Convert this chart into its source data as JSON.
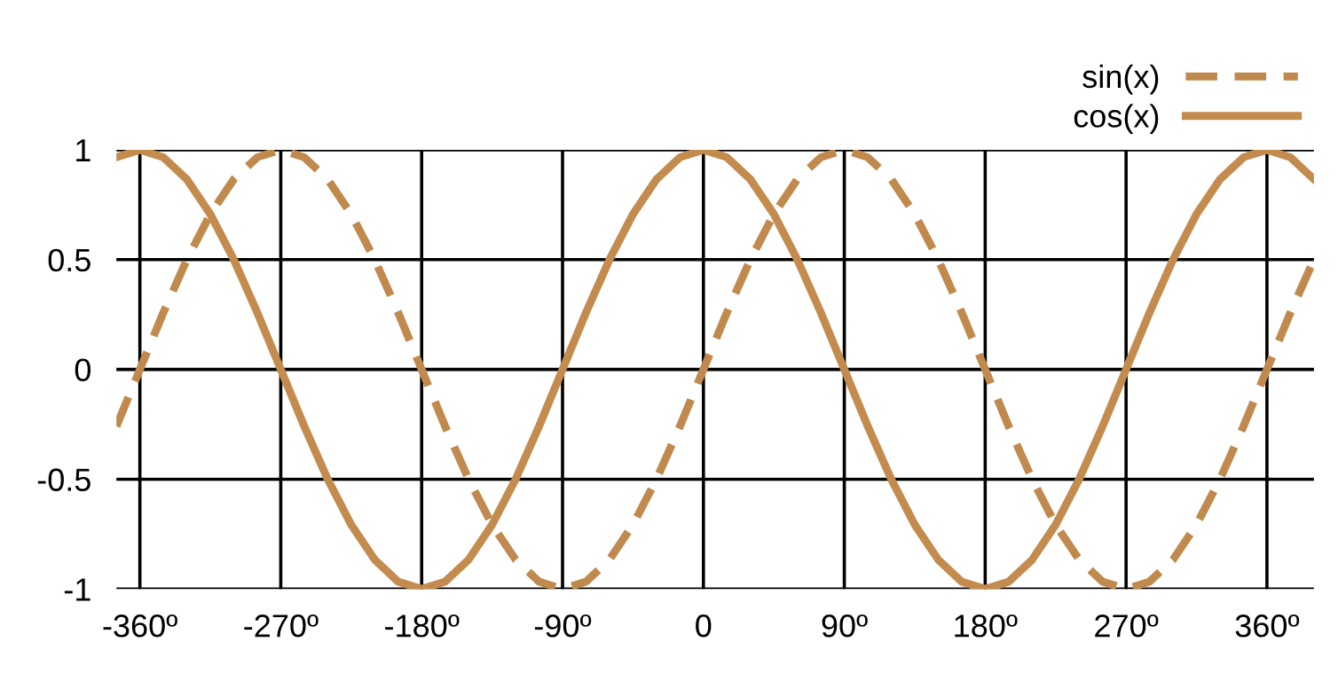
{
  "chart_data": {
    "type": "line",
    "x": [
      -375,
      -360,
      -345,
      -330,
      -315,
      -300,
      -285,
      -270,
      -255,
      -240,
      -225,
      -210,
      -195,
      -180,
      -165,
      -150,
      -135,
      -120,
      -105,
      -90,
      -75,
      -60,
      -45,
      -30,
      -15,
      0,
      15,
      30,
      45,
      60,
      75,
      90,
      105,
      120,
      135,
      150,
      165,
      180,
      195,
      210,
      225,
      240,
      255,
      270,
      285,
      300,
      315,
      330,
      345,
      360,
      375,
      390
    ],
    "series": [
      {
        "name": "sin(x)",
        "color": "#c08a4e",
        "line_style": "dashed",
        "values": [
          -0.259,
          0,
          0.259,
          0.5,
          0.707,
          0.866,
          0.966,
          1,
          0.966,
          0.866,
          0.707,
          0.5,
          0.259,
          0,
          -0.259,
          -0.5,
          -0.707,
          -0.866,
          -0.966,
          -1,
          -0.966,
          -0.866,
          -0.707,
          -0.5,
          -0.259,
          0,
          0.259,
          0.5,
          0.707,
          0.866,
          0.966,
          1,
          0.966,
          0.866,
          0.707,
          0.5,
          0.259,
          0,
          -0.259,
          -0.5,
          -0.707,
          -0.866,
          -0.966,
          -1,
          -0.966,
          -0.866,
          -0.707,
          -0.5,
          -0.259,
          0,
          0.259,
          0.5
        ]
      },
      {
        "name": "cos(x)",
        "color": "#c48b4f",
        "line_style": "solid",
        "values": [
          0.966,
          1,
          0.966,
          0.866,
          0.707,
          0.5,
          0.259,
          0,
          -0.259,
          -0.5,
          -0.707,
          -0.866,
          -0.966,
          -1,
          -0.966,
          -0.866,
          -0.707,
          -0.5,
          -0.259,
          0,
          0.259,
          0.5,
          0.707,
          0.866,
          0.966,
          1,
          0.966,
          0.866,
          0.707,
          0.5,
          0.259,
          0,
          -0.259,
          -0.5,
          -0.707,
          -0.866,
          -0.966,
          -1,
          -0.966,
          -0.866,
          -0.707,
          -0.5,
          -0.259,
          0,
          0.259,
          0.5,
          0.707,
          0.866,
          0.966,
          1,
          0.966,
          0.866
        ]
      }
    ],
    "xlim": [
      -375,
      390
    ],
    "ylim": [
      -1,
      1
    ],
    "xticks": [
      {
        "value": -360,
        "label": "-360º"
      },
      {
        "value": -270,
        "label": "-270º"
      },
      {
        "value": -180,
        "label": "-180º"
      },
      {
        "value": -90,
        "label": "-90º"
      },
      {
        "value": 0,
        "label": "0"
      },
      {
        "value": 90,
        "label": "90º"
      },
      {
        "value": 180,
        "label": "180º"
      },
      {
        "value": 270,
        "label": "270º"
      },
      {
        "value": 360,
        "label": "360º"
      }
    ],
    "yticks": [
      -1,
      -0.5,
      0,
      0.5,
      1
    ],
    "grid": true,
    "legend": "top right",
    "marker": "none"
  }
}
